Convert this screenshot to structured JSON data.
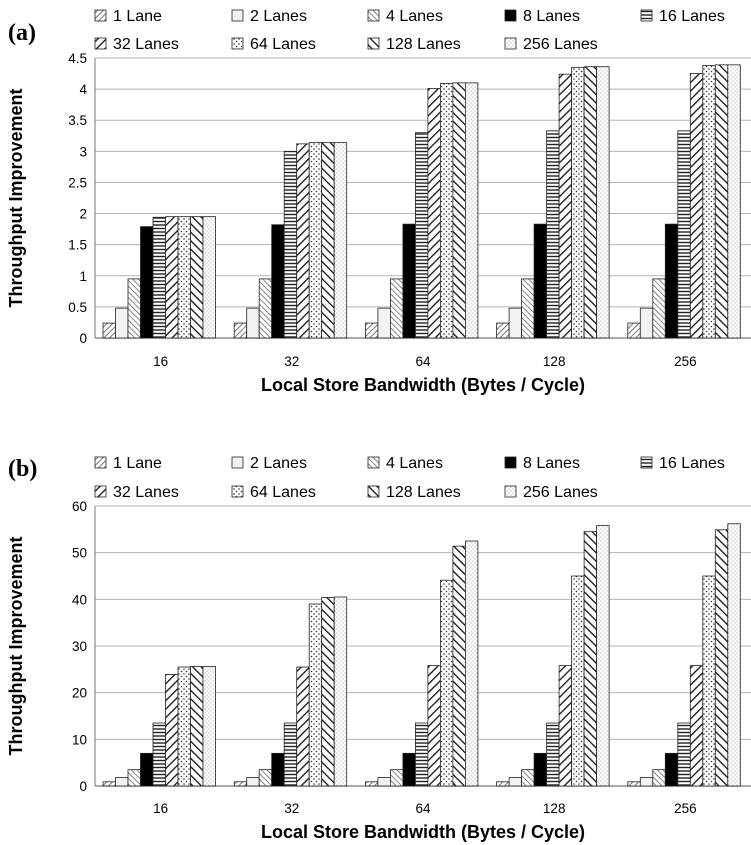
{
  "chart_data": [
    {
      "panel_label": "(a)",
      "type": "bar",
      "xlabel": "Local Store Bandwidth (Bytes / Cycle)",
      "ylabel": "Throughput Improvement",
      "categories": [
        "16",
        "32",
        "64",
        "128",
        "256"
      ],
      "ylim": [
        0,
        4.5
      ],
      "yticks": [
        "0",
        "0.5",
        "1",
        "1.5",
        "2",
        "2.5",
        "3",
        "3.5",
        "4",
        "4.5"
      ],
      "ytick_values": [
        0,
        0.5,
        1,
        1.5,
        2,
        2.5,
        3,
        3.5,
        4,
        4.5
      ],
      "grid": true,
      "legend_position": "top",
      "series": [
        {
          "name": "1 Lane",
          "pattern": "diag-dense",
          "values": [
            0.24,
            0.24,
            0.24,
            0.24,
            0.24
          ]
        },
        {
          "name": "2 Lanes",
          "pattern": "plain-light",
          "values": [
            0.48,
            0.48,
            0.48,
            0.48,
            0.48
          ]
        },
        {
          "name": "4 Lanes",
          "pattern": "diag-back",
          "values": [
            0.95,
            0.95,
            0.95,
            0.95,
            0.95
          ]
        },
        {
          "name": "8 Lanes",
          "pattern": "solid",
          "values": [
            1.79,
            1.82,
            1.83,
            1.83,
            1.83
          ]
        },
        {
          "name": "16 Lanes",
          "pattern": "horizontal",
          "values": [
            1.94,
            3.0,
            3.3,
            3.33,
            3.33
          ]
        },
        {
          "name": "32 Lanes",
          "pattern": "diag-wide",
          "values": [
            1.95,
            3.12,
            4.01,
            4.24,
            4.25
          ]
        },
        {
          "name": "64 Lanes",
          "pattern": "dots",
          "values": [
            1.95,
            3.14,
            4.09,
            4.35,
            4.38
          ]
        },
        {
          "name": "128 Lanes",
          "pattern": "diag-back-wide",
          "values": [
            1.95,
            3.14,
            4.1,
            4.36,
            4.39
          ]
        },
        {
          "name": "256 Lanes",
          "pattern": "dots-fine",
          "values": [
            1.95,
            3.14,
            4.1,
            4.36,
            4.39
          ]
        }
      ]
    },
    {
      "panel_label": "(b)",
      "type": "bar",
      "xlabel": "Local Store Bandwidth (Bytes / Cycle)",
      "ylabel": "Throughput Improvement",
      "categories": [
        "16",
        "32",
        "64",
        "128",
        "256"
      ],
      "ylim": [
        0,
        60
      ],
      "yticks": [
        "0",
        "10",
        "20",
        "30",
        "40",
        "50",
        "60"
      ],
      "ytick_values": [
        0,
        10,
        20,
        30,
        40,
        50,
        60
      ],
      "grid": true,
      "legend_position": "top",
      "series": [
        {
          "name": "1 Lane",
          "pattern": "diag-dense",
          "values": [
            0.9,
            0.9,
            0.9,
            0.9,
            0.9
          ]
        },
        {
          "name": "2 Lanes",
          "pattern": "plain-light",
          "values": [
            1.8,
            1.8,
            1.8,
            1.8,
            1.8
          ]
        },
        {
          "name": "4 Lanes",
          "pattern": "diag-back",
          "values": [
            3.5,
            3.5,
            3.5,
            3.5,
            3.5
          ]
        },
        {
          "name": "8 Lanes",
          "pattern": "solid",
          "values": [
            7.0,
            7.0,
            7.0,
            7.0,
            7.0
          ]
        },
        {
          "name": "16 Lanes",
          "pattern": "horizontal",
          "values": [
            13.5,
            13.5,
            13.5,
            13.5,
            13.5
          ]
        },
        {
          "name": "32 Lanes",
          "pattern": "diag-wide",
          "values": [
            23.9,
            25.5,
            25.8,
            25.8,
            25.8
          ]
        },
        {
          "name": "64 Lanes",
          "pattern": "dots",
          "values": [
            25.5,
            39.0,
            44.1,
            45.0,
            45.0
          ]
        },
        {
          "name": "128 Lanes",
          "pattern": "diag-back-wide",
          "values": [
            25.6,
            40.4,
            51.4,
            54.5,
            54.9
          ]
        },
        {
          "name": "256 Lanes",
          "pattern": "dots-fine",
          "values": [
            25.6,
            40.5,
            52.5,
            55.8,
            56.2
          ]
        }
      ]
    }
  ]
}
